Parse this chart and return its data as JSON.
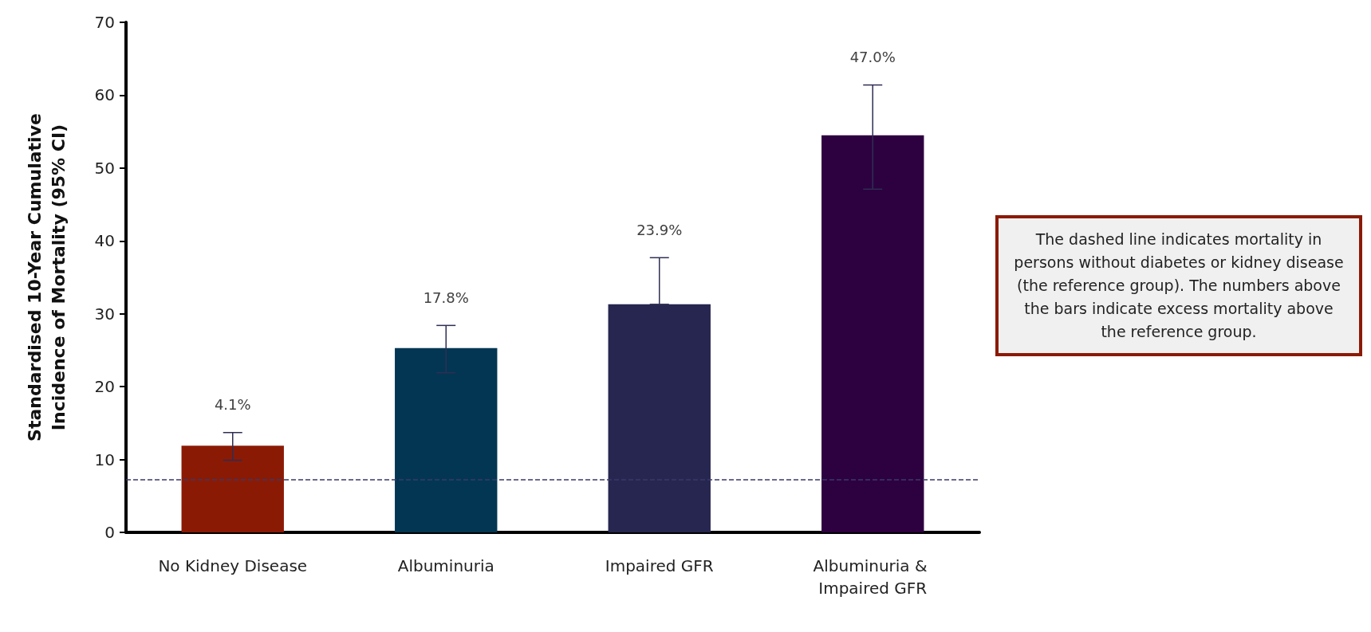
{
  "chart_data": {
    "type": "bar",
    "ylabel": "Standardised 10-Year Cumulative Incidence of Mortality (95% CI)",
    "categories": [
      "No Kidney Disease",
      "Albuminuria",
      "Impaired GFR",
      "Albuminuria & Impaired GFR"
    ],
    "values": [
      11.9,
      25.3,
      31.3,
      54.5
    ],
    "colors": [
      "#8b1a05",
      "#033652",
      "#262650",
      "#2d003f"
    ],
    "errors": [
      [
        9.9,
        13.7
      ],
      [
        21.9,
        28.4
      ],
      [
        31.3,
        37.7
      ],
      [
        47.1,
        61.4
      ]
    ],
    "ylim": [
      0,
      70
    ],
    "yticks": [
      0,
      10,
      20,
      30,
      40,
      50,
      60,
      70
    ],
    "grid": false,
    "ref_lines": [
      {
        "axis": "y",
        "value": 7.2,
        "label": null,
        "color": "#3a3a6a",
        "line_style": "dashed"
      }
    ],
    "annotations": [
      {
        "text": "4.1%",
        "x": "No Kidney Disease",
        "y": 13.7
      },
      {
        "text": "17.8%",
        "x": "Albuminuria",
        "y": 28.4
      },
      {
        "text": "23.9%",
        "x": "Impaired GFR",
        "y": 37.7
      },
      {
        "text": "47.0%",
        "x": "Albuminuria & Impaired GFR",
        "y": 61.4
      },
      "The dashed line indicates mortality in persons without diabetes or kidney disease (the reference group). The numbers above the bars indicate excess mortality above the reference group."
    ]
  }
}
